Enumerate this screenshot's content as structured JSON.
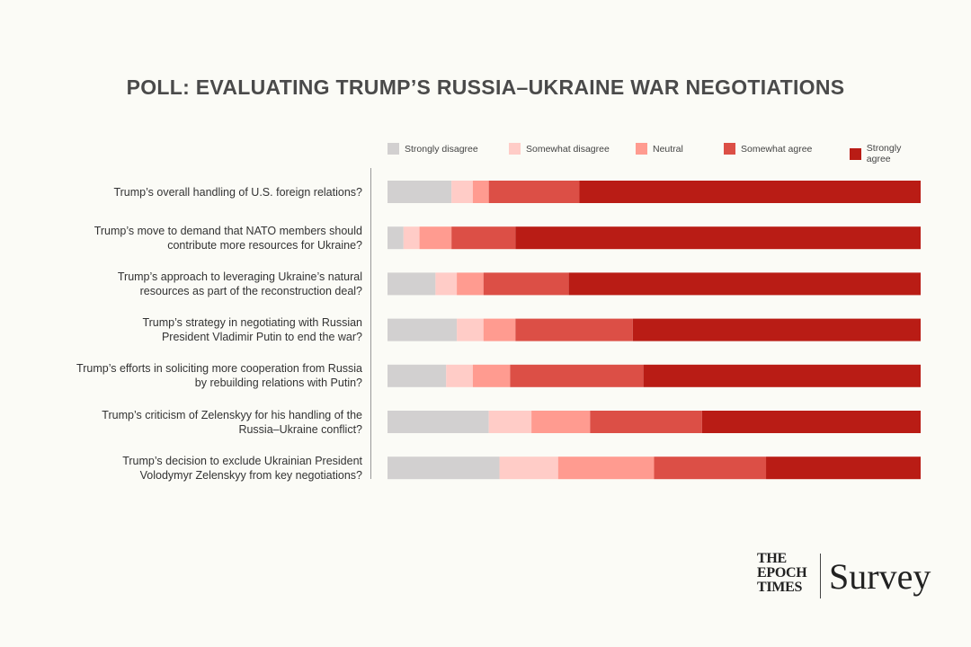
{
  "chart_data": {
    "type": "bar",
    "orientation": "horizontal",
    "stacked": true,
    "percent": true,
    "title": "POLL: EVALUATING TRUMP’S RUSSIA–UKRAINE WAR NEGOTIATIONS",
    "legend_position": "top",
    "grid": false,
    "xlim": [
      0,
      100
    ],
    "categories": [
      [
        "Trump’s overall handling of U.S. foreign relations?"
      ],
      [
        "Trump’s move to demand that NATO members should",
        "contribute more resources for Ukraine?"
      ],
      [
        "Trump’s approach to leveraging Ukraine’s natural",
        "resources as part of the reconstruction deal?"
      ],
      [
        "Trump’s strategy in negotiating with Russian",
        "President Vladimir Putin to end the war?"
      ],
      [
        "Trump’s efforts in soliciting more cooperation from Russia",
        "by rebuilding relations with Putin?"
      ],
      [
        "Trump’s criticism of Zelenskyy for his handling of the",
        "Russia–Ukraine conflict?"
      ],
      [
        "Trump’s decision to exclude Ukrainian President",
        "Volodymyr Zelenskyy from key negotiations?"
      ]
    ],
    "series": [
      {
        "name": "Strongly disagree",
        "color": "#d2d0d0",
        "values": [
          12,
          3,
          9,
          13,
          11,
          19,
          21
        ]
      },
      {
        "name": "Somewhat disagree",
        "color": "#ffccc7",
        "values": [
          4,
          3,
          4,
          5,
          5,
          8,
          11
        ]
      },
      {
        "name": "Neutral",
        "color": "#ff9b90",
        "values": [
          3,
          6,
          5,
          6,
          7,
          11,
          18
        ]
      },
      {
        "name": "Somewhat agree",
        "color": "#dc4f46",
        "values": [
          17,
          12,
          16,
          22,
          25,
          21,
          21
        ]
      },
      {
        "name": "Strongly agree",
        "color": "#b91c15",
        "values": [
          64,
          76,
          66,
          54,
          52,
          41,
          29
        ]
      }
    ]
  },
  "logo": {
    "brand": "THE EPOCH TIMES",
    "brand_lines": [
      "THE",
      "EPOCH",
      "TIMES"
    ],
    "product": "Survey"
  }
}
